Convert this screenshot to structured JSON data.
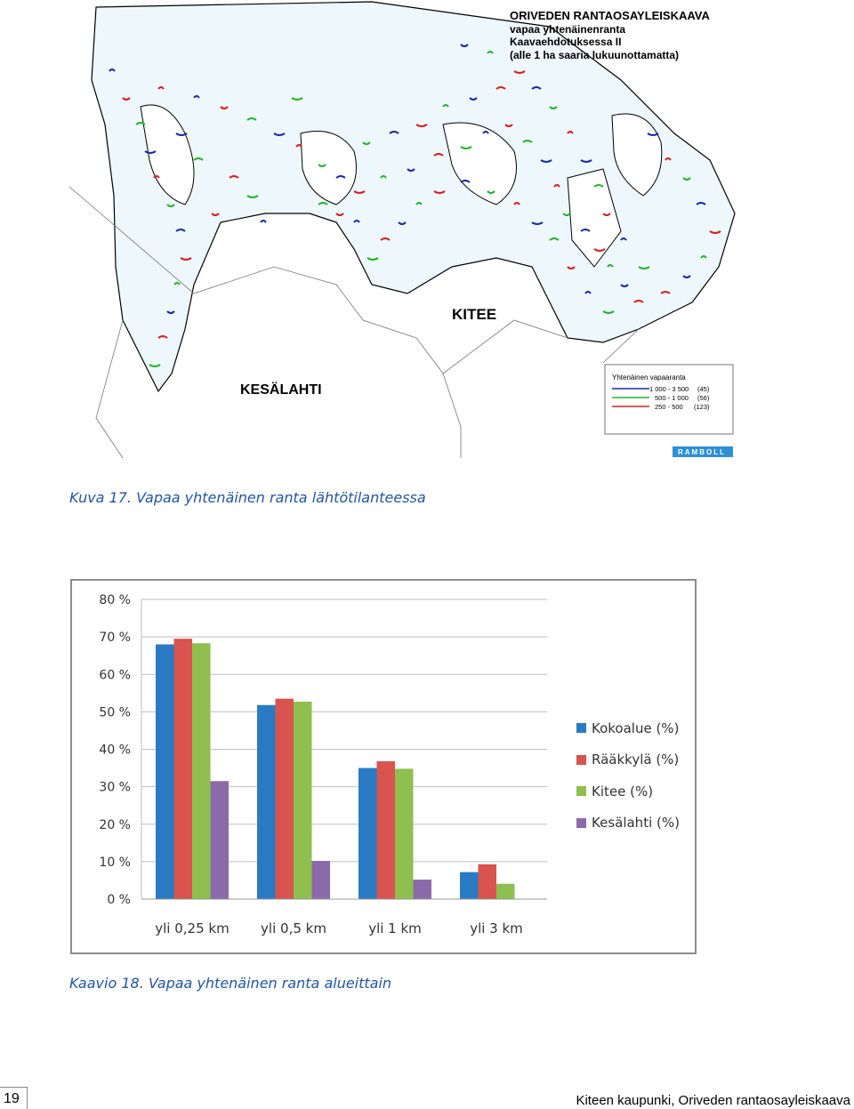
{
  "map": {
    "title_lines": [
      "ORIVEDEN RANTAOSAYLEISKAAVA",
      "vapaa yhtenäinenranta",
      "Kaavaehdotuksessa II",
      "(alle 1 ha saaria lukuunottamatta)"
    ],
    "label_kitee": "KITEE",
    "label_kesalahti": "KESÄLAHTI",
    "legend_title": "Yhtenäinen vapaaranta",
    "legend_rows": [
      {
        "range": "1 000 - 3 500",
        "count": "(45)",
        "color": "#1a2aa8"
      },
      {
        "range": "500 - 1 000",
        "count": "(56)",
        "color": "#22b52a"
      },
      {
        "range": "250 -   500",
        "count": "(123)",
        "color": "#d81e1e"
      }
    ],
    "logo_text": "RAMBOLL",
    "logo_color": "#2d8fd6",
    "water_color": "#eef7fb"
  },
  "map_caption": "Kuva 17. Vapaa yhtenäinen ranta lähtötilanteessa",
  "chart_data": {
    "type": "bar",
    "categories": [
      "yli 0,25 km",
      "yli 0,5 km",
      "yli 1 km",
      "yli 3 km"
    ],
    "series": [
      {
        "name": "Kokoalue (%)",
        "color": "#2b7bc4",
        "values": [
          68,
          51.8,
          35,
          7.2
        ]
      },
      {
        "name": "Rääkkylä (%)",
        "color": "#d9534f",
        "values": [
          69.5,
          53.5,
          36.8,
          9.3
        ]
      },
      {
        "name": "Kitee (%)",
        "color": "#8fbf4f",
        "values": [
          68.3,
          52.7,
          34.8,
          4.1
        ]
      },
      {
        "name": "Kesälahti (%)",
        "color": "#8c6aaa",
        "values": [
          31.5,
          10.2,
          5.2,
          0
        ]
      }
    ],
    "y_ticks": [
      "0 %",
      "10 %",
      "20 %",
      "30 %",
      "40 %",
      "50 %",
      "60 %",
      "70 %",
      "80 %"
    ],
    "ylim": [
      0,
      80
    ],
    "grid": true,
    "legend_position": "right"
  },
  "chart_caption": "Kaavio 18. Vapaa yhtenäinen ranta alueittain",
  "footer": {
    "page_number": "19",
    "text": "Kiteen kaupunki, Oriveden rantaosayleiskaava"
  }
}
